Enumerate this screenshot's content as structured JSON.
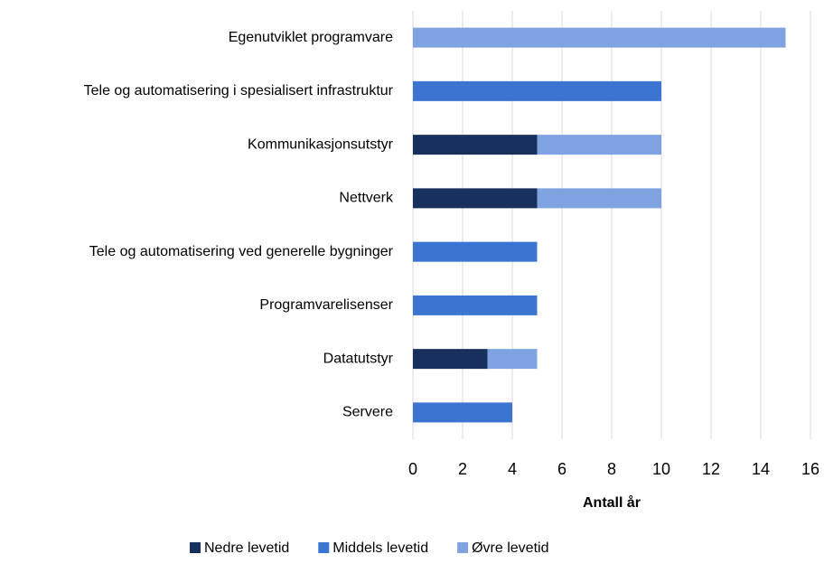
{
  "chart_data": {
    "type": "stacked-bar-horizontal",
    "categories": [
      "Egenutviklet programvare",
      "Tele og automatisering i spesialisert infrastruktur",
      "Kommunikasjonsutstyr",
      "Nettverk",
      "Tele og automatisering ved generelle bygninger",
      "Programvarelisenser",
      "Datatutstyr",
      "Servere"
    ],
    "series": [
      {
        "name": "Nedre levetid",
        "color": "#17305e",
        "values": [
          null,
          null,
          5,
          5,
          null,
          null,
          3,
          null
        ]
      },
      {
        "name": "Middels levetid",
        "color": "#3c74d2",
        "values": [
          null,
          10,
          null,
          null,
          5,
          5,
          null,
          4
        ]
      },
      {
        "name": "Øvre levetid",
        "color": "#7fa3e0",
        "values": [
          15,
          null,
          5,
          5,
          null,
          null,
          2,
          null
        ]
      }
    ],
    "x_label": "Antall år",
    "xlim": [
      0,
      16
    ],
    "xticks": [
      0,
      2,
      4,
      6,
      8,
      10,
      12,
      14,
      16
    ],
    "grid": true,
    "legend": "bottom"
  }
}
